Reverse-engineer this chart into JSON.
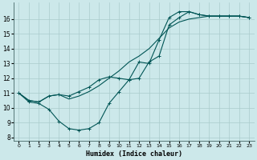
{
  "xlabel": "Humidex (Indice chaleur)",
  "bg_color": "#cce8ea",
  "grid_color": "#aacccc",
  "line_color": "#005555",
  "xlim": [
    -0.5,
    23.5
  ],
  "ylim": [
    7.8,
    17.1
  ],
  "x_ticks": [
    0,
    1,
    2,
    3,
    4,
    5,
    6,
    7,
    8,
    9,
    10,
    11,
    12,
    13,
    14,
    15,
    16,
    17,
    18,
    19,
    20,
    21,
    22,
    23
  ],
  "y_ticks": [
    8,
    9,
    10,
    11,
    12,
    13,
    14,
    15,
    16
  ],
  "line1_x": [
    0,
    1,
    2,
    3,
    4,
    5,
    6,
    7,
    8,
    9,
    10,
    11,
    12,
    13,
    14,
    15,
    16,
    17,
    18,
    19,
    20,
    21,
    22,
    23
  ],
  "line1_y": [
    11.0,
    10.4,
    10.3,
    9.9,
    9.1,
    8.6,
    8.5,
    8.6,
    9.0,
    10.3,
    11.1,
    11.9,
    13.1,
    13.0,
    14.6,
    16.1,
    16.5,
    16.5,
    16.3,
    16.2,
    16.2,
    16.2,
    16.2,
    16.1
  ],
  "line2_x": [
    0,
    1,
    2,
    3,
    4,
    5,
    6,
    7,
    8,
    9,
    10,
    11,
    12,
    13,
    14,
    15,
    16,
    17,
    18,
    19,
    20,
    21,
    22,
    23
  ],
  "line2_y": [
    11.0,
    10.5,
    10.4,
    10.8,
    10.9,
    10.6,
    10.8,
    11.1,
    11.5,
    12.0,
    12.5,
    13.1,
    13.5,
    14.0,
    14.7,
    15.4,
    15.8,
    16.0,
    16.1,
    16.2,
    16.2,
    16.2,
    16.2,
    16.1
  ],
  "line3_x": [
    0,
    1,
    2,
    3,
    4,
    5,
    6,
    7,
    8,
    9,
    10,
    11,
    12,
    13,
    14,
    15,
    16,
    17,
    18,
    19,
    20,
    21,
    22,
    23
  ],
  "line3_y": [
    11.0,
    10.5,
    10.4,
    10.8,
    10.9,
    10.8,
    11.1,
    11.4,
    11.9,
    12.1,
    12.0,
    11.9,
    12.0,
    13.1,
    13.5,
    15.6,
    16.1,
    16.5,
    16.3,
    16.2,
    16.2,
    16.2,
    16.2,
    16.1
  ]
}
